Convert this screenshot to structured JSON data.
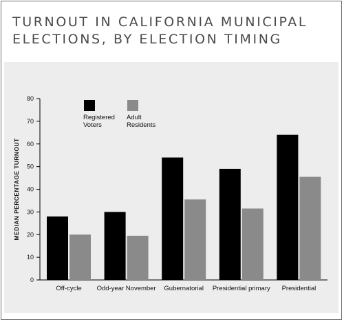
{
  "chart_data": {
    "type": "bar",
    "title": "TURNOUT IN CALIFORNIA MUNICIPAL ELECTIONS, BY ELECTION TIMING",
    "title_lines": [
      "TURNOUT IN CALIFORNIA MUNICIPAL",
      "ELECTIONS, BY ELECTION TIMING"
    ],
    "xlabel": "",
    "ylabel": "MEDIAN PERCENTAGE TURNOUT",
    "ylim": [
      0,
      80
    ],
    "yticks": [
      "0",
      "10",
      "20",
      "30",
      "40",
      "50",
      "60",
      "70",
      "80"
    ],
    "categories": [
      "Off-cycle",
      "Odd-year November",
      "Gubernatorial",
      "Presidential primary",
      "Presidential"
    ],
    "series": [
      {
        "name": "Registered Voters",
        "legend_lines": [
          "Registered",
          "Voters"
        ],
        "color": "#000000",
        "values": [
          28,
          30,
          54,
          49,
          64
        ]
      },
      {
        "name": "Adult Residents",
        "legend_lines": [
          "Adult",
          "Residents"
        ],
        "color": "#8a8a8a",
        "values": [
          20,
          19.5,
          35.5,
          31.5,
          45.5
        ]
      }
    ],
    "grid": false,
    "legend_position": "top-left"
  },
  "colors": {
    "background": "#ededed",
    "title": "#4a4a4a",
    "frame": "#6f6f6f"
  }
}
